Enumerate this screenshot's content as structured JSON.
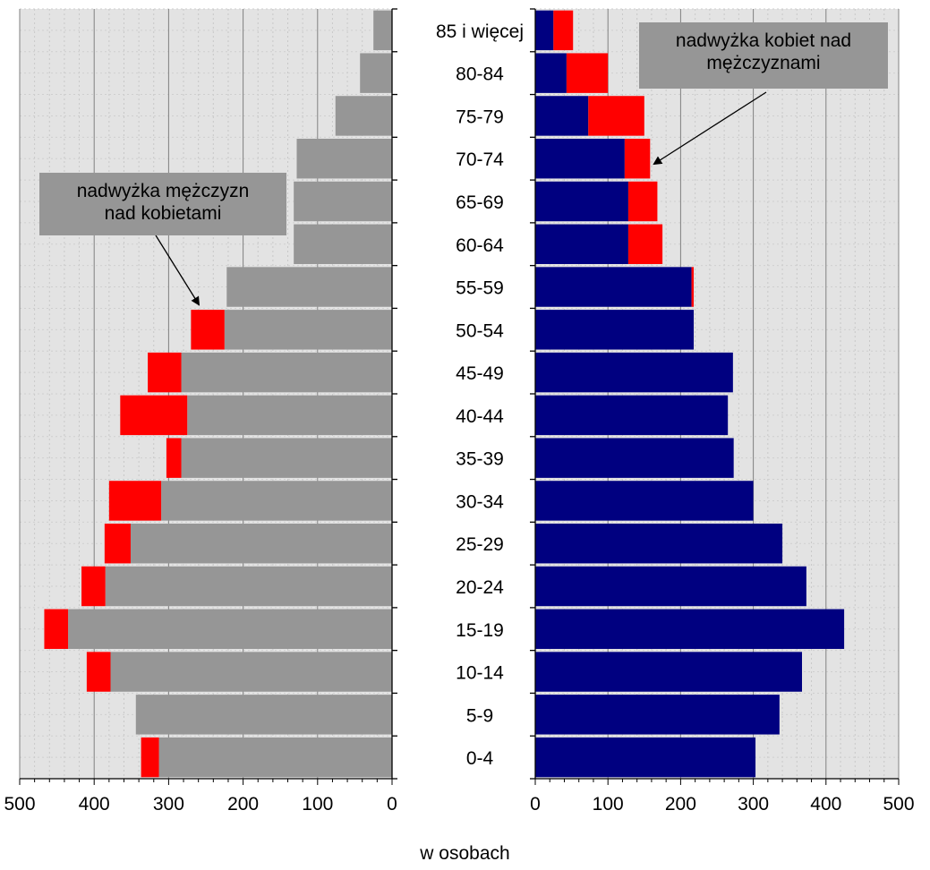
{
  "chart_data": {
    "type": "bar",
    "orientation": "horizontal",
    "layout": "population-pyramid",
    "categories": [
      "0-4",
      "5-9",
      "10-14",
      "15-19",
      "20-24",
      "25-29",
      "30-34",
      "35-39",
      "40-44",
      "45-49",
      "50-54",
      "55-59",
      "60-64",
      "65-69",
      "70-74",
      "75-79",
      "80-84",
      "85 i więcej"
    ],
    "left_panel": {
      "xlim": [
        500,
        0
      ],
      "ticks": [
        500,
        400,
        300,
        200,
        100,
        0
      ],
      "tick_labels": [
        "500",
        "400",
        "300",
        "200",
        "100",
        "0"
      ],
      "series": [
        {
          "color": "#969696",
          "values": [
            313,
            344,
            378,
            435,
            385,
            351,
            310,
            283,
            275,
            283,
            225,
            222,
            132,
            132,
            128,
            76,
            43,
            25
          ]
        },
        {
          "color": "#ff0000",
          "values": [
            24,
            0,
            32,
            32,
            32,
            35,
            70,
            20,
            90,
            45,
            45,
            0,
            0,
            0,
            0,
            0,
            0,
            0
          ]
        }
      ]
    },
    "right_panel": {
      "xlim": [
        0,
        500
      ],
      "ticks": [
        0,
        100,
        200,
        300,
        400,
        500
      ],
      "tick_labels": [
        "0",
        "100",
        "200",
        "300",
        "400",
        "500"
      ],
      "series": [
        {
          "color": "#000080",
          "values": [
            303,
            336,
            367,
            425,
            373,
            340,
            300,
            273,
            265,
            272,
            218,
            215,
            128,
            128,
            123,
            73,
            43,
            25
          ]
        },
        {
          "color": "#ff0000",
          "values": [
            0,
            0,
            0,
            0,
            0,
            0,
            0,
            0,
            0,
            0,
            0,
            3,
            47,
            40,
            35,
            77,
            57,
            27
          ]
        }
      ]
    },
    "xlabel": "w osobach",
    "annotations": [
      {
        "text": "nadwyżka mężczyzn nad kobietami",
        "lines": [
          "nadwyżka mężczyzn",
          "nad kobietami"
        ]
      },
      {
        "text": "nadwyżka kobiet nad mężczyznami",
        "lines": [
          "nadwyżka kobiet nad",
          "mężczyznami"
        ]
      }
    ],
    "grid": true,
    "plot_background": "#e3e3e3"
  }
}
